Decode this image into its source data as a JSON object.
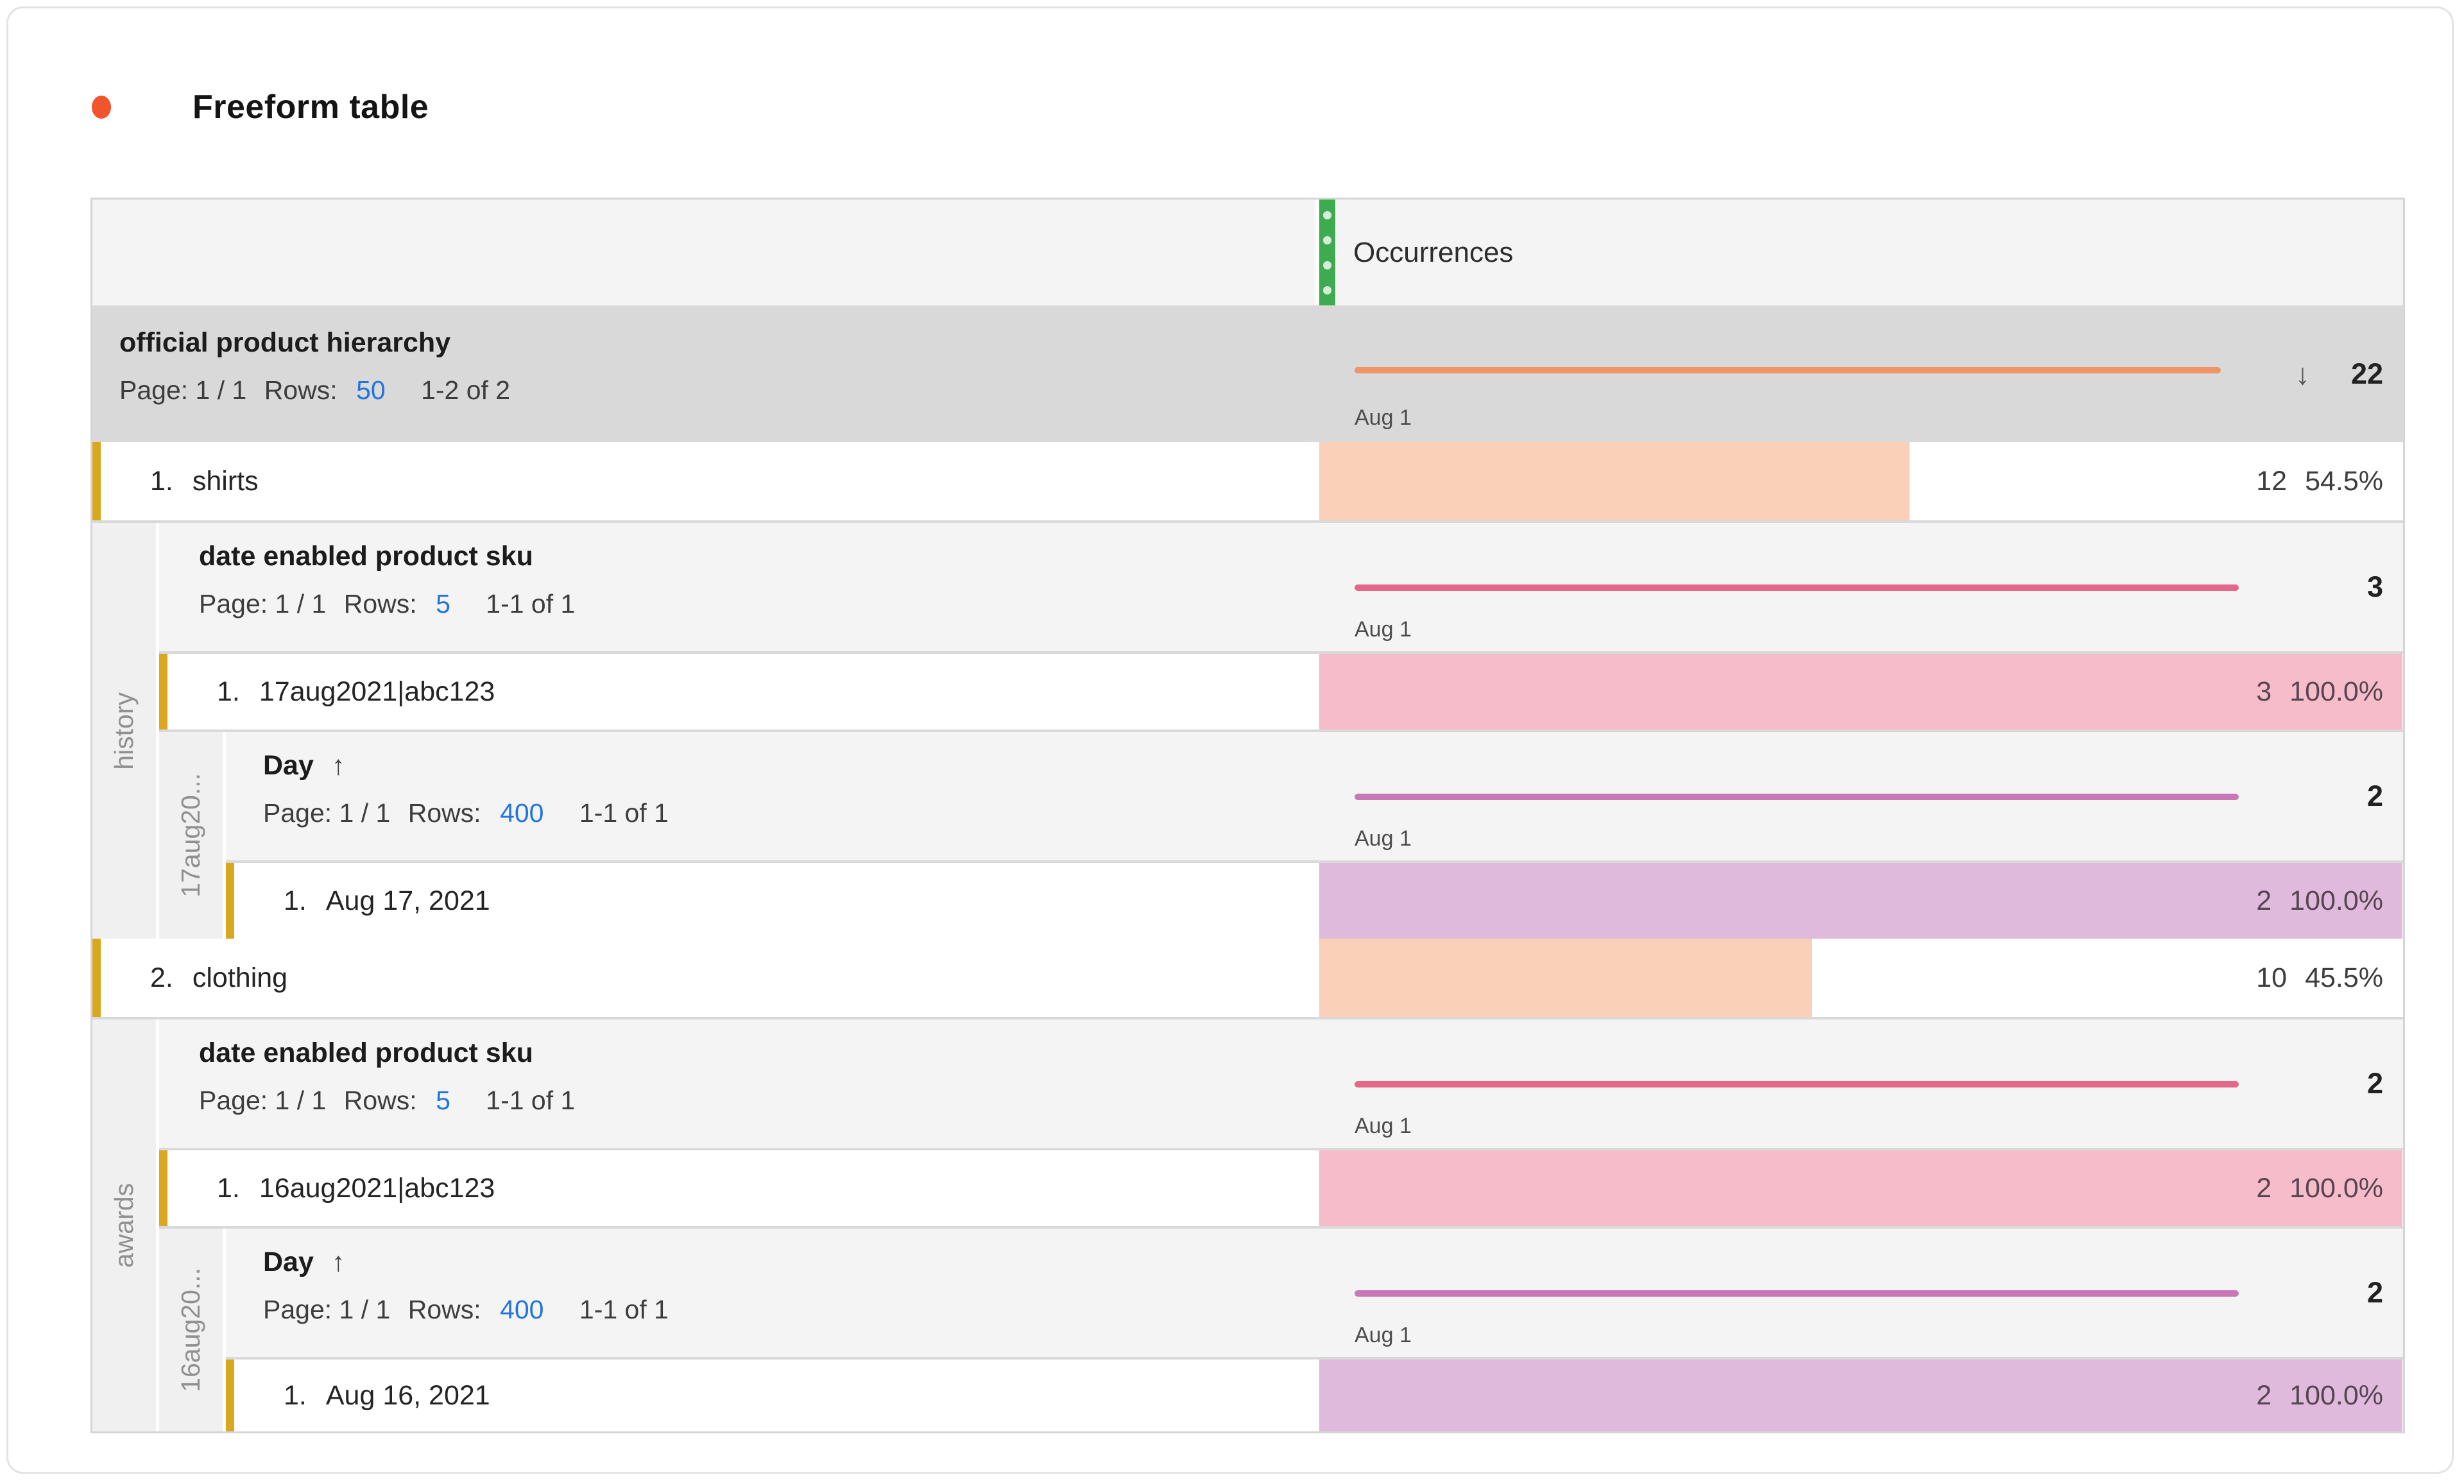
{
  "title": "Freeform table",
  "colors": {
    "accent_dot": "#F2542D",
    "drag_handle_green": "#3FAB50",
    "link_blue": "#2474DF",
    "row_accent_gold": "#D9A820",
    "spark_orange": "#EE9467",
    "spark_pink": "#E4678A",
    "spark_purple": "#C878B6",
    "bar_peach": "#FAD1B8",
    "bar_pink": "#F6BCC9",
    "bar_purple": "#DFBADC"
  },
  "columns": {
    "metric_label": "Occurrences"
  },
  "hierarchy": {
    "name": "official product hierarchy",
    "page": "Page: 1 / 1",
    "rows_label": "Rows:",
    "rows_value": "50",
    "range": "1-2 of 2",
    "spark_date": "Aug 1",
    "sort_icon": "↓",
    "total": "22"
  },
  "shirts": {
    "row": {
      "index": "1.",
      "label": "shirts",
      "value": "12",
      "pct": "54.5%",
      "bar_width": "54.5%"
    },
    "breakdown": {
      "side_label": "history",
      "sku": {
        "name": "date enabled product sku",
        "page": "Page: 1 / 1",
        "rows_label": "Rows:",
        "rows_value": "5",
        "range": "1-1 of 1",
        "spark_date": "Aug 1",
        "total": "3",
        "row": {
          "index": "1.",
          "label": "17aug2021|abc123",
          "value": "3",
          "pct": "100.0%",
          "bar_width": "100%"
        }
      },
      "day": {
        "side_label": "17aug20...",
        "name": "Day",
        "sort_icon": "↑",
        "page": "Page: 1 / 1",
        "rows_label": "Rows:",
        "rows_value": "400",
        "range": "1-1 of 1",
        "spark_date": "Aug 1",
        "total": "2",
        "row": {
          "index": "1.",
          "label": "Aug 17, 2021",
          "value": "2",
          "pct": "100.0%",
          "bar_width": "100%"
        }
      }
    }
  },
  "clothing": {
    "row": {
      "index": "2.",
      "label": "clothing",
      "value": "10",
      "pct": "45.5%",
      "bar_width": "45.5%"
    },
    "breakdown": {
      "side_label": "awards",
      "sku": {
        "name": "date enabled product sku",
        "page": "Page: 1 / 1",
        "rows_label": "Rows:",
        "rows_value": "5",
        "range": "1-1 of 1",
        "spark_date": "Aug 1",
        "total": "2",
        "row": {
          "index": "1.",
          "label": "16aug2021|abc123",
          "value": "2",
          "pct": "100.0%",
          "bar_width": "100%"
        }
      },
      "day": {
        "side_label": "16aug20...",
        "name": "Day",
        "sort_icon": "↑",
        "page": "Page: 1 / 1",
        "rows_label": "Rows:",
        "rows_value": "400",
        "range": "1-1 of 1",
        "spark_date": "Aug 1",
        "total": "2",
        "row": {
          "index": "1.",
          "label": "Aug 16, 2021",
          "value": "2",
          "pct": "100.0%",
          "bar_width": "100%"
        }
      }
    }
  }
}
